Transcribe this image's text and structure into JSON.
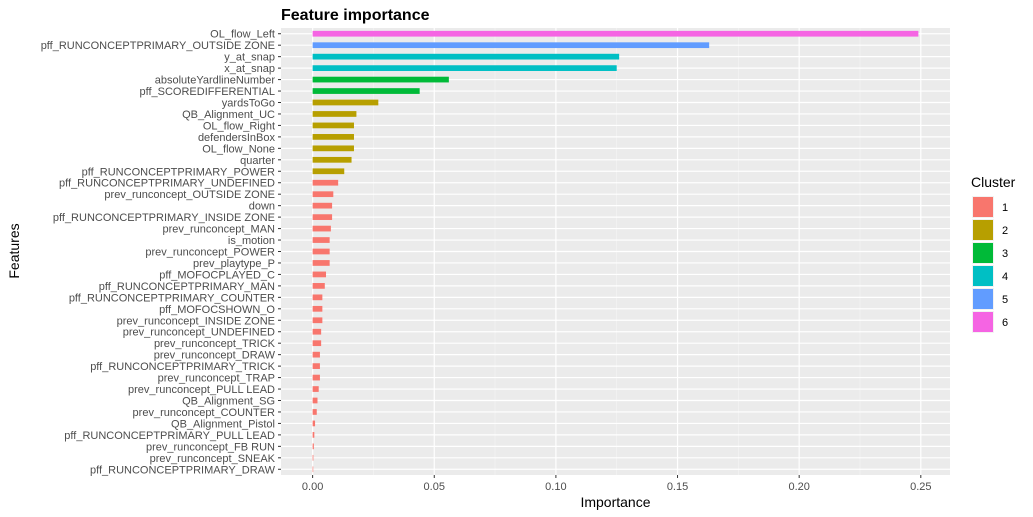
{
  "chart_data": {
    "type": "bar",
    "orientation": "horizontal",
    "title": "Feature importance",
    "xlabel": "Importance",
    "ylabel": "Features",
    "xlim": [
      -0.013,
      0.262
    ],
    "x_ticks": [
      0.0,
      0.05,
      0.1,
      0.15,
      0.2,
      0.25
    ],
    "x_tick_labels": [
      "0.00",
      "0.05",
      "0.10",
      "0.15",
      "0.20",
      "0.25"
    ],
    "grid": true,
    "legend": {
      "title": "Cluster",
      "placement": "right",
      "entries": [
        {
          "label": "1",
          "color": "#F8766D"
        },
        {
          "label": "2",
          "color": "#B79F00"
        },
        {
          "label": "3",
          "color": "#00BA38"
        },
        {
          "label": "4",
          "color": "#00BFC4"
        },
        {
          "label": "5",
          "color": "#619CFF"
        },
        {
          "label": "6",
          "color": "#F564E3"
        }
      ]
    },
    "bars": [
      {
        "feature": "OL_flow_Left",
        "value": 0.249,
        "cluster": "6"
      },
      {
        "feature": "pff_RUNCONCEPTPRIMARY_OUTSIDE ZONE",
        "value": 0.163,
        "cluster": "5"
      },
      {
        "feature": "y_at_snap",
        "value": 0.126,
        "cluster": "4"
      },
      {
        "feature": "x_at_snap",
        "value": 0.125,
        "cluster": "4"
      },
      {
        "feature": "absoluteYardlineNumber",
        "value": 0.056,
        "cluster": "3"
      },
      {
        "feature": "pff_SCOREDIFFERENTIAL",
        "value": 0.044,
        "cluster": "3"
      },
      {
        "feature": "yardsToGo",
        "value": 0.027,
        "cluster": "2"
      },
      {
        "feature": "QB_Alignment_UC",
        "value": 0.018,
        "cluster": "2"
      },
      {
        "feature": "OL_flow_Right",
        "value": 0.017,
        "cluster": "2"
      },
      {
        "feature": "defendersInBox",
        "value": 0.017,
        "cluster": "2"
      },
      {
        "feature": "OL_flow_None",
        "value": 0.017,
        "cluster": "2"
      },
      {
        "feature": "quarter",
        "value": 0.016,
        "cluster": "2"
      },
      {
        "feature": "pff_RUNCONCEPTPRIMARY_POWER",
        "value": 0.013,
        "cluster": "2"
      },
      {
        "feature": "pff_RUNCONCEPTPRIMARY_UNDEFINED",
        "value": 0.0105,
        "cluster": "1"
      },
      {
        "feature": "prev_runconcept_OUTSIDE ZONE",
        "value": 0.0085,
        "cluster": "1"
      },
      {
        "feature": "down",
        "value": 0.008,
        "cluster": "1"
      },
      {
        "feature": "pff_RUNCONCEPTPRIMARY_INSIDE ZONE",
        "value": 0.008,
        "cluster": "1"
      },
      {
        "feature": "prev_runconcept_MAN",
        "value": 0.0075,
        "cluster": "1"
      },
      {
        "feature": "is_motion",
        "value": 0.007,
        "cluster": "1"
      },
      {
        "feature": "prev_runconcept_POWER",
        "value": 0.007,
        "cluster": "1"
      },
      {
        "feature": "prev_playtype_P",
        "value": 0.007,
        "cluster": "1"
      },
      {
        "feature": "pff_MOFOCPLAYED_C",
        "value": 0.0055,
        "cluster": "1"
      },
      {
        "feature": "pff_RUNCONCEPTPRIMARY_MAN",
        "value": 0.005,
        "cluster": "1"
      },
      {
        "feature": "pff_RUNCONCEPTPRIMARY_COUNTER",
        "value": 0.004,
        "cluster": "1"
      },
      {
        "feature": "pff_MOFOCSHOWN_O",
        "value": 0.004,
        "cluster": "1"
      },
      {
        "feature": "prev_runconcept_INSIDE ZONE",
        "value": 0.004,
        "cluster": "1"
      },
      {
        "feature": "prev_runconcept_UNDEFINED",
        "value": 0.0035,
        "cluster": "1"
      },
      {
        "feature": "prev_runconcept_TRICK",
        "value": 0.0035,
        "cluster": "1"
      },
      {
        "feature": "prev_runconcept_DRAW",
        "value": 0.003,
        "cluster": "1"
      },
      {
        "feature": "pff_RUNCONCEPTPRIMARY_TRICK",
        "value": 0.003,
        "cluster": "1"
      },
      {
        "feature": "prev_runconcept_TRAP",
        "value": 0.003,
        "cluster": "1"
      },
      {
        "feature": "prev_runconcept_PULL LEAD",
        "value": 0.0025,
        "cluster": "1"
      },
      {
        "feature": "QB_Alignment_SG",
        "value": 0.002,
        "cluster": "1"
      },
      {
        "feature": "prev_runconcept_COUNTER",
        "value": 0.0017,
        "cluster": "1"
      },
      {
        "feature": "QB_Alignment_Pistol",
        "value": 0.001,
        "cluster": "1"
      },
      {
        "feature": "pff_RUNCONCEPTPRIMARY_PULL LEAD",
        "value": 0.0007,
        "cluster": "1"
      },
      {
        "feature": "prev_runconcept_FB RUN",
        "value": 0.0005,
        "cluster": "1"
      },
      {
        "feature": "prev_runconcept_SNEAK",
        "value": 0.0003,
        "cluster": "1"
      },
      {
        "feature": "pff_RUNCONCEPTPRIMARY_DRAW",
        "value": 0.0001,
        "cluster": "1"
      }
    ]
  }
}
